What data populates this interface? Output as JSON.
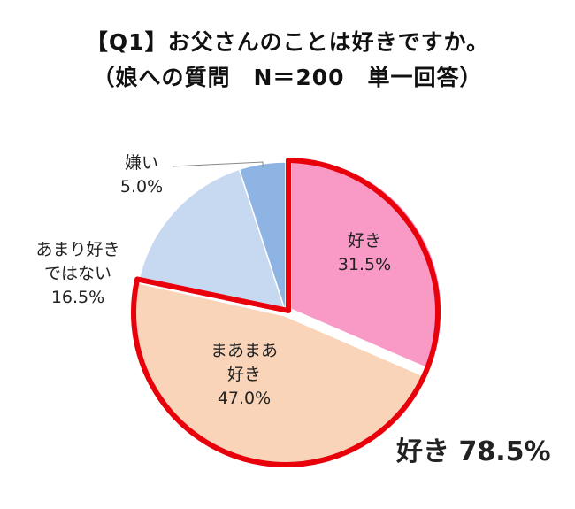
{
  "title": "【Q1】お父さんのことは好きですか。",
  "subtitle": "（娘への質問　N＝200　単一回答）",
  "chart_data": {
    "type": "pie",
    "slices": [
      {
        "label": [
          "好き"
        ],
        "value": 31.5,
        "value_text": "31.5%",
        "color": "#f999c6"
      },
      {
        "label": [
          "まあまあ",
          "好き"
        ],
        "value": 47.0,
        "value_text": "47.0%",
        "color": "#fad4b8"
      },
      {
        "label": [
          "あまり好き",
          "ではない"
        ],
        "value": 16.5,
        "value_text": "16.5%",
        "color": "#c7d9f1"
      },
      {
        "label": [
          "嫌い"
        ],
        "value": 5.0,
        "value_text": "5.0%",
        "color": "#8eb4e3"
      }
    ],
    "highlight": {
      "text": "好き 78.5%",
      "color": "#e8000b"
    }
  }
}
